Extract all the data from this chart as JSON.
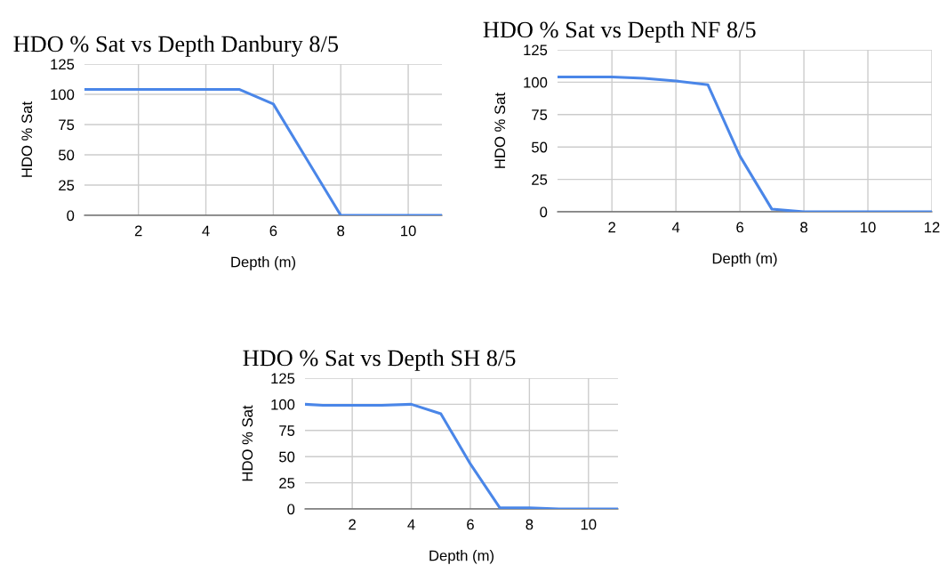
{
  "chart_data": [
    {
      "type": "line",
      "title": "HDO % Sat vs Depth Danbury 8/5",
      "xlabel": "Depth (m)",
      "ylabel": "HDO % Sat",
      "grid": true,
      "x": [
        0.4,
        1,
        2,
        3,
        4,
        5,
        6,
        7,
        8,
        9,
        10,
        11
      ],
      "series": [
        {
          "color": "#4a86e8",
          "values": [
            104,
            104,
            104,
            104,
            104,
            104,
            92,
            46,
            0,
            0,
            0,
            0
          ]
        }
      ],
      "xlim": [
        0.4,
        11
      ],
      "xticks": [
        2,
        4,
        6,
        8,
        10
      ],
      "ylim": [
        0,
        125
      ],
      "yticks": [
        0,
        25,
        50,
        75,
        100,
        125
      ]
    },
    {
      "type": "line",
      "title": "HDO % Sat vs Depth NF 8/5",
      "xlabel": "Depth (m)",
      "ylabel": "HDO % Sat",
      "grid": true,
      "x": [
        0.3,
        1,
        2,
        3,
        4,
        5,
        6,
        7,
        8,
        9,
        10,
        11,
        12
      ],
      "series": [
        {
          "color": "#4a86e8",
          "values": [
            104,
            104,
            104,
            103,
            101,
            98,
            43,
            2,
            0,
            0,
            0,
            0,
            0
          ]
        }
      ],
      "xlim": [
        0.3,
        12
      ],
      "xticks": [
        2,
        4,
        6,
        8,
        10,
        12
      ],
      "ylim": [
        0,
        125
      ],
      "yticks": [
        0,
        25,
        50,
        75,
        100,
        125
      ]
    },
    {
      "type": "line",
      "title": "HDO % Sat vs Depth SH 8/5",
      "xlabel": "Depth (m)",
      "ylabel": "HDO % Sat",
      "grid": true,
      "x": [
        0.4,
        1,
        2,
        3,
        4,
        5,
        6,
        7,
        8,
        9,
        10,
        11
      ],
      "series": [
        {
          "color": "#4a86e8",
          "values": [
            100,
            99,
            99,
            99,
            100,
            91,
            43,
            1,
            1,
            0,
            0,
            0
          ]
        }
      ],
      "xlim": [
        0.4,
        11
      ],
      "xticks": [
        2,
        4,
        6,
        8,
        10
      ],
      "ylim": [
        0,
        125
      ],
      "yticks": [
        0,
        25,
        50,
        75,
        100,
        125
      ]
    }
  ]
}
